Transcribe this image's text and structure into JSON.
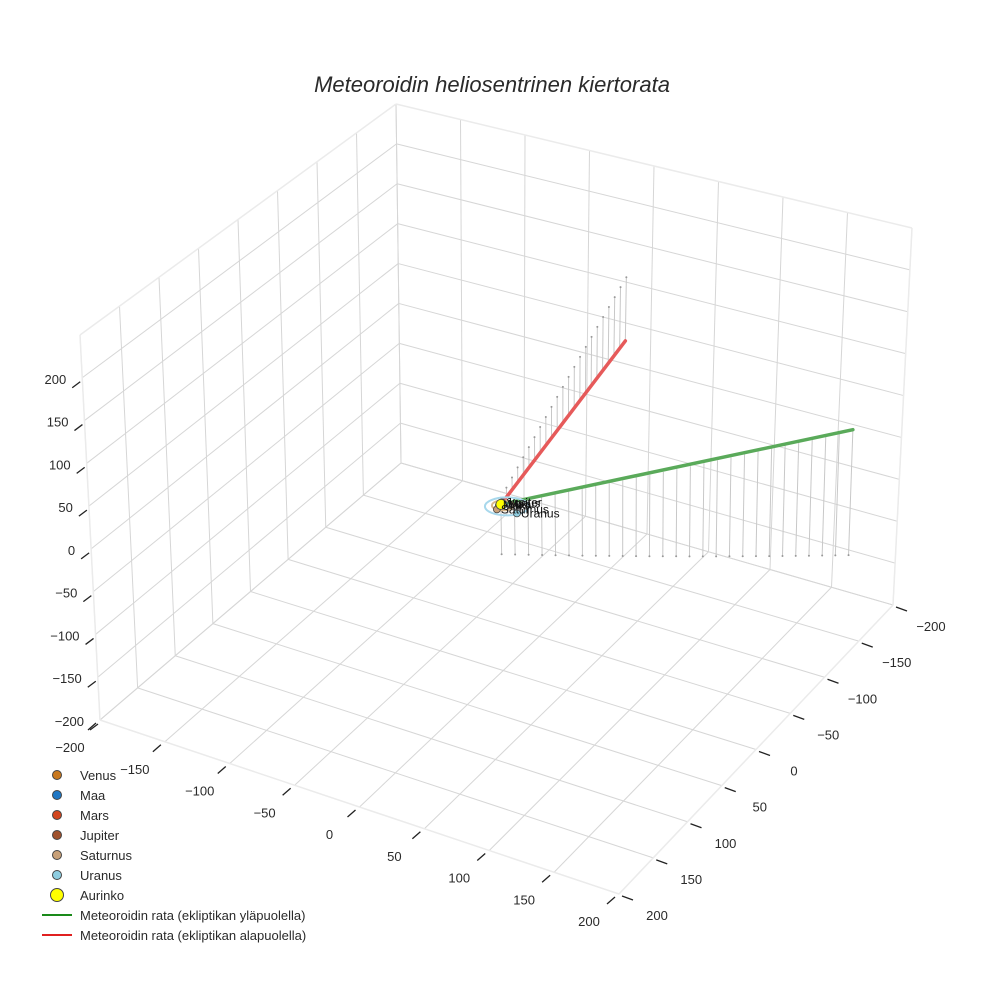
{
  "title": "Meteoroidin heliosentrinen kiertorata",
  "chart_data": {
    "type": "scatter3d",
    "title": "Meteoroidin heliosentrinen kiertorata",
    "axes": {
      "x": {
        "range": [
          -200,
          200
        ],
        "ticks": [
          -200,
          -150,
          -100,
          -50,
          0,
          50,
          100,
          150,
          200
        ],
        "label": ""
      },
      "y": {
        "range": [
          -200,
          200
        ],
        "ticks": [
          -200,
          -150,
          -100,
          -50,
          0,
          50,
          100,
          150,
          200
        ],
        "label": ""
      },
      "z": {
        "range": [
          -200,
          250
        ],
        "ticks": [
          -200,
          -150,
          -100,
          -50,
          0,
          50,
          100,
          150,
          200
        ],
        "label": ""
      }
    },
    "grid": true,
    "legend_position": "bottom-left",
    "series": [
      {
        "name": "Venus",
        "type": "marker",
        "color": "#c8781e",
        "point": [
          0.7,
          0.2,
          0
        ]
      },
      {
        "name": "Maa",
        "type": "marker",
        "color": "#1f77c4",
        "point": [
          1,
          0,
          0
        ]
      },
      {
        "name": "Mars",
        "type": "marker",
        "color": "#d2461e",
        "point": [
          -1.2,
          0.9,
          0
        ]
      },
      {
        "name": "Jupiter",
        "type": "marker",
        "color": "#a0522d",
        "point": [
          2,
          -4.8,
          0
        ]
      },
      {
        "name": "Saturnus",
        "type": "marker",
        "color": "#c8a078",
        "point": [
          6,
          7.5,
          0
        ]
      },
      {
        "name": "Uranus",
        "type": "marker",
        "color": "#8ecde0",
        "point": [
          -14,
          -13,
          0
        ]
      },
      {
        "name": "Aurinko",
        "type": "marker",
        "color": "#ffff00",
        "point": [
          0,
          0,
          0
        ],
        "size": "large"
      },
      {
        "name": "Meteoroidin rata (ekliptikan yläpuolella)",
        "type": "line",
        "color": "#2ca02c",
        "points": [
          [
            0,
            0,
            0
          ],
          [
            -150,
            -180,
            120
          ]
        ]
      },
      {
        "name": "Meteoroidin rata (ekliptikan alapuolella)",
        "type": "line",
        "color": "#d62728",
        "points": [
          [
            0,
            0,
            0
          ],
          [
            150,
            180,
            0
          ]
        ]
      }
    ],
    "orbits": [
      {
        "name": "Uranus orbit",
        "radius": 19,
        "color": "#9bd0e4"
      },
      {
        "name": "Saturnus orbit",
        "radius": 9.5,
        "color": "#d8b88c"
      }
    ]
  },
  "legend": {
    "items": [
      {
        "label": "Venus",
        "kind": "dot",
        "color": "#c8781e"
      },
      {
        "label": "Maa",
        "kind": "dot",
        "color": "#1f77c4"
      },
      {
        "label": "Mars",
        "kind": "dot",
        "color": "#d2461e"
      },
      {
        "label": "Jupiter",
        "kind": "dot",
        "color": "#a0522d"
      },
      {
        "label": "Saturnus",
        "kind": "dot",
        "color": "#c8a078"
      },
      {
        "label": "Uranus",
        "kind": "dot",
        "color": "#8ecde0"
      },
      {
        "label": "Aurinko",
        "kind": "bigdot",
        "color": "#ffff00"
      },
      {
        "label": "Meteoroidin rata (ekliptikan yläpuolella)",
        "kind": "line",
        "color": "#1a8a1a"
      },
      {
        "label": "Meteoroidin rata (ekliptikan alapuolella)",
        "kind": "line",
        "color": "#e02020"
      }
    ]
  },
  "planet_labels": [
    "Venus",
    "Maa",
    "Mars",
    "Jupiter",
    "Saturnus",
    "Uranus"
  ]
}
